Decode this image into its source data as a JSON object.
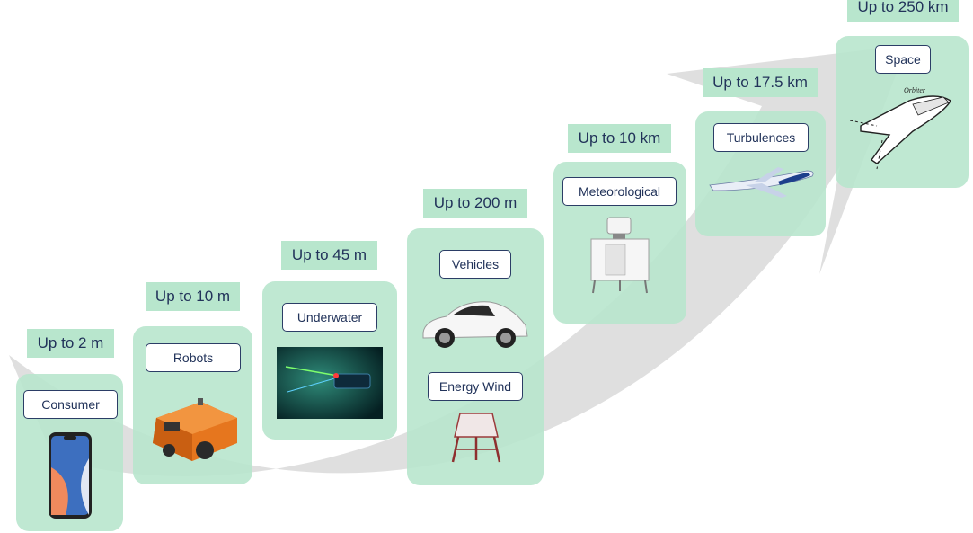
{
  "colors": {
    "card": "#b8e6cd",
    "label_border": "#2b3d66",
    "text": "#22335a",
    "arrow": "#d4d4d4"
  },
  "stages": [
    {
      "range": "Up to 2 m",
      "label": "Consumer",
      "icon": "smartphone-icon"
    },
    {
      "range": "Up to 10 m",
      "label": "Robots",
      "icon": "robot-icon"
    },
    {
      "range": "Up to 45 m",
      "label": "Underwater",
      "icon": "underwater-icon"
    },
    {
      "range": "Up to 200 m",
      "label": "Vehicles",
      "label2": "Energy Wind",
      "icon": "car-icon",
      "icon2": "wind-lidar-icon"
    },
    {
      "range": "Up to 10 km",
      "label": "Meteorological",
      "icon": "meteo-lidar-icon"
    },
    {
      "range": "Up to 17.5 km",
      "label": "Turbulences",
      "icon": "airplane-icon"
    },
    {
      "range": "Up to 250 km",
      "label": "Space",
      "icon": "space-shuttle-icon",
      "icon_caption": "Orbiter"
    }
  ]
}
